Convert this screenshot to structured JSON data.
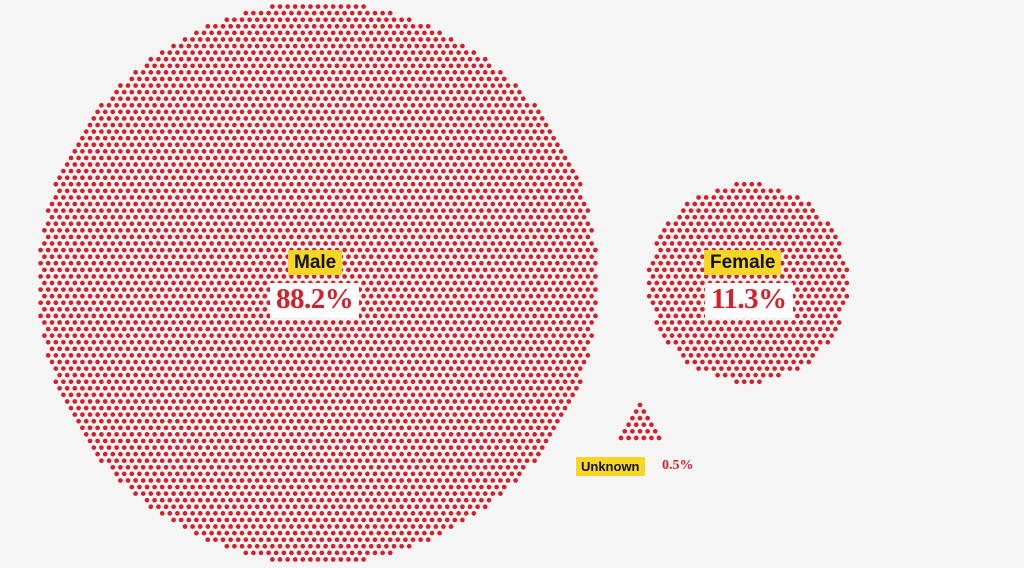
{
  "colors": {
    "dot": "#d81e28",
    "label_bg": "#f7d724",
    "value_bg": "#ffffff",
    "background": "#f5f5f5"
  },
  "chart_data": {
    "type": "dot-circle",
    "unit": "%",
    "categories": [
      "Male",
      "Female",
      "Unknown"
    ],
    "values": [
      88.2,
      11.3,
      0.5
    ],
    "labels": {
      "male": {
        "name": "Male",
        "value": "88.2%"
      },
      "female": {
        "name": "Female",
        "value": "11.3%"
      },
      "unknown": {
        "name": "Unknown",
        "value": "0.5%"
      }
    }
  }
}
